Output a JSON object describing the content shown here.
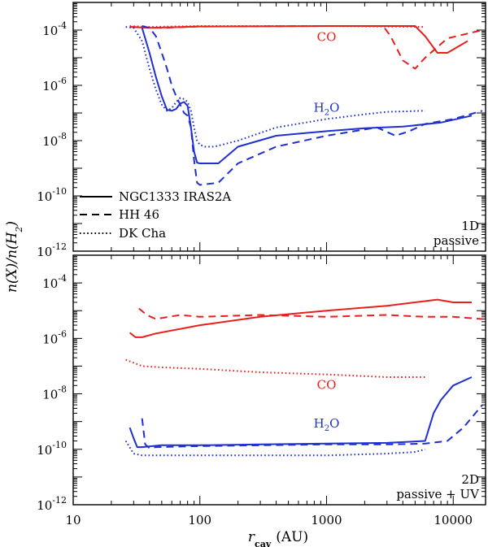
{
  "figure": {
    "ylabel_main": "n(X)/n(H",
    "ylabel_sub": "2",
    "ylabel_close": ")",
    "xlabel_main": "r",
    "xlabel_sub": "cav",
    "xlabel_unit": "(AU)",
    "x_ticks": [
      "10",
      "100",
      "1000",
      "10000"
    ],
    "y_tick_base": "10",
    "y_tick_exps": [
      "-12",
      "-10",
      "-8",
      "-6",
      "-4"
    ],
    "colors": {
      "co": "#e8201c",
      "h2o": "#1f2fd0",
      "axes": "#000000"
    }
  },
  "chart_data": [
    {
      "type": "line",
      "panel": "top",
      "label_line1": "1D",
      "label_line2": "passive",
      "xscale": "log",
      "yscale": "log",
      "xlim": [
        10,
        18000
      ],
      "ylim": [
        1e-12,
        0.001
      ],
      "xlabel": "r_cav (AU)",
      "ylabel": "n(X)/n(H2)",
      "annotations": [
        {
          "text": "CO",
          "species": "co",
          "x": 1000,
          "y": 4e-05
        },
        {
          "text": "H",
          "sub": "2",
          "tail": "O",
          "species": "h2o",
          "x": 1000,
          "y": 1.1e-07
        }
      ],
      "legend": {
        "placement": "bottom-left",
        "entries": [
          {
            "name": "NGC1333 IRAS2A",
            "style": "solid"
          },
          {
            "name": "HH 46",
            "style": "dashed"
          },
          {
            "name": "DK Cha",
            "style": "dotted"
          }
        ]
      },
      "series": [
        {
          "name": "CO NGC1333 IRAS2A",
          "species": "co",
          "style": "solid",
          "x": [
            28,
            40,
            100,
            1000,
            5000,
            6000,
            7500,
            9000,
            13000
          ],
          "y": [
            0.00013,
            0.00012,
            0.000135,
            0.00014,
            0.00014,
            6e-05,
            1.5e-05,
            1.5e-05,
            4e-05
          ]
        },
        {
          "name": "CO HH 46",
          "species": "co",
          "style": "dashed",
          "x": [
            28,
            50,
            100,
            1000,
            2800,
            3200,
            4000,
            5000,
            6000,
            9000,
            17000
          ],
          "y": [
            0.00013,
            0.00012,
            0.000135,
            0.00014,
            0.00014,
            6e-05,
            8e-06,
            4e-06,
            1e-05,
            5e-05,
            0.0001
          ]
        },
        {
          "name": "CO DK Cha",
          "species": "co",
          "style": "dotted",
          "x": [
            28,
            40,
            100,
            1000,
            6000
          ],
          "y": [
            0.00014,
            0.00013,
            0.00014,
            0.00014,
            0.00013
          ]
        },
        {
          "name": "H2O NGC1333 IRAS2A",
          "species": "h2o",
          "style": "solid",
          "x": [
            35,
            40,
            45,
            50,
            55,
            60,
            65,
            70,
            75,
            80,
            85,
            90,
            95,
            100,
            140,
            200,
            400,
            1000,
            2000,
            2800,
            4000,
            8000,
            14000
          ],
          "y": [
            0.00012,
            1.5e-05,
            2e-06,
            4e-07,
            1.3e-07,
            1.2e-07,
            1.4e-07,
            2.2e-07,
            2.5e-07,
            1.8e-07,
            3e-08,
            4e-09,
            1.6e-09,
            1.5e-09,
            1.5e-09,
            6e-09,
            1.5e-08,
            2.2e-08,
            2.8e-08,
            3e-08,
            3.2e-08,
            4.5e-08,
            8e-08
          ]
        },
        {
          "name": "H2O HH 46",
          "species": "h2o",
          "style": "dashed",
          "x": [
            35,
            40,
            45,
            50,
            55,
            60,
            65,
            70,
            75,
            80,
            85,
            90,
            95,
            100,
            140,
            200,
            400,
            1000,
            2500,
            3500,
            4500,
            6000,
            10000,
            17000
          ],
          "y": [
            0.00014,
            0.00012,
            6e-05,
            1.5e-05,
            4e-06,
            1e-06,
            4e-07,
            2e-07,
            1e-07,
            8e-08,
            3e-08,
            2e-09,
            3e-10,
            2.5e-10,
            3e-10,
            1.5e-09,
            6e-09,
            1.5e-08,
            3e-08,
            1.5e-08,
            2.2e-08,
            4e-08,
            6e-08,
            1.2e-07
          ]
        },
        {
          "name": "H2O DK Cha",
          "species": "h2o",
          "style": "dotted",
          "x": [
            26,
            30,
            35,
            40,
            45,
            50,
            55,
            60,
            65,
            70,
            75,
            80,
            85,
            90,
            95,
            100,
            110,
            130,
            200,
            400,
            1000,
            2000,
            3000,
            6000
          ],
          "y": [
            0.00013,
            0.00012,
            4e-05,
            4e-06,
            7e-07,
            2e-07,
            1.2e-07,
            1.5e-07,
            2.5e-07,
            3.5e-07,
            3.2e-07,
            2.5e-07,
            1.2e-07,
            3e-08,
            1e-08,
            7e-09,
            6e-09,
            6e-09,
            1e-08,
            3e-08,
            6e-08,
            9e-08,
            1.1e-07,
            1.2e-07
          ]
        }
      ]
    },
    {
      "type": "line",
      "panel": "bottom",
      "label_line1": "2D",
      "label_line2": "passive + UV",
      "xscale": "log",
      "yscale": "log",
      "xlim": [
        10,
        18000
      ],
      "ylim": [
        1e-12,
        0.001
      ],
      "xlabel": "r_cav (AU)",
      "ylabel": "n(X)/n(H2)",
      "annotations": [
        {
          "text": "CO",
          "species": "co",
          "x": 1000,
          "y": 1.5e-08
        },
        {
          "text": "H",
          "sub": "2",
          "tail": "O",
          "species": "h2o",
          "x": 1000,
          "y": 6e-10
        }
      ],
      "series": [
        {
          "name": "CO NGC1333 IRAS2A",
          "species": "co",
          "style": "solid",
          "x": [
            28,
            31,
            35,
            45,
            100,
            300,
            1000,
            3000,
            6000,
            7500,
            10000,
            14000
          ],
          "y": [
            1.6e-06,
            1.1e-06,
            1.1e-06,
            1.5e-06,
            3e-06,
            6e-06,
            1e-05,
            1.5e-05,
            2.2e-05,
            2.5e-05,
            2e-05,
            2e-05
          ]
        },
        {
          "name": "CO HH 46",
          "species": "co",
          "style": "dashed",
          "x": [
            33,
            38,
            45,
            70,
            100,
            300,
            1000,
            3000,
            6000,
            10000,
            17000
          ],
          "y": [
            1.2e-05,
            7e-06,
            5e-06,
            7e-06,
            6e-06,
            7e-06,
            6e-06,
            7e-06,
            6e-06,
            6e-06,
            5e-06
          ]
        },
        {
          "name": "CO DK Cha",
          "species": "co",
          "style": "dotted",
          "x": [
            26,
            35,
            50,
            100,
            300,
            1000,
            3000,
            6000
          ],
          "y": [
            1.7e-07,
            1e-07,
            9e-08,
            8e-08,
            6e-08,
            5e-08,
            4e-08,
            4e-08
          ]
        },
        {
          "name": "H2O NGC1333 IRAS2A",
          "species": "h2o",
          "style": "solid",
          "x": [
            28,
            30,
            32,
            35,
            50,
            100,
            300,
            1000,
            3000,
            6000,
            7000,
            8000,
            10000,
            14000
          ],
          "y": [
            6e-10,
            2.5e-10,
            1.2e-10,
            1.2e-10,
            1.4e-10,
            1.4e-10,
            1.5e-10,
            1.6e-10,
            1.7e-10,
            2e-10,
            2e-09,
            6e-09,
            2e-08,
            4e-08
          ]
        },
        {
          "name": "H2O HH 46",
          "species": "h2o",
          "style": "dashed",
          "x": [
            35,
            37,
            40,
            45,
            100,
            300,
            1000,
            3000,
            6000,
            9000,
            12000,
            17000
          ],
          "y": [
            1.3e-09,
            1.5e-10,
            1.1e-10,
            1.2e-10,
            1.3e-10,
            1.4e-10,
            1.5e-10,
            1.5e-10,
            1.6e-10,
            2e-10,
            6e-10,
            4e-09
          ]
        },
        {
          "name": "H2O DK Cha",
          "species": "h2o",
          "style": "dotted",
          "x": [
            26,
            30,
            35,
            50,
            100,
            300,
            1000,
            3000,
            5000,
            6000
          ],
          "y": [
            2e-10,
            7e-11,
            6e-11,
            6e-11,
            6e-11,
            6e-11,
            6e-11,
            7e-11,
            8e-11,
            1e-10
          ]
        }
      ]
    }
  ]
}
